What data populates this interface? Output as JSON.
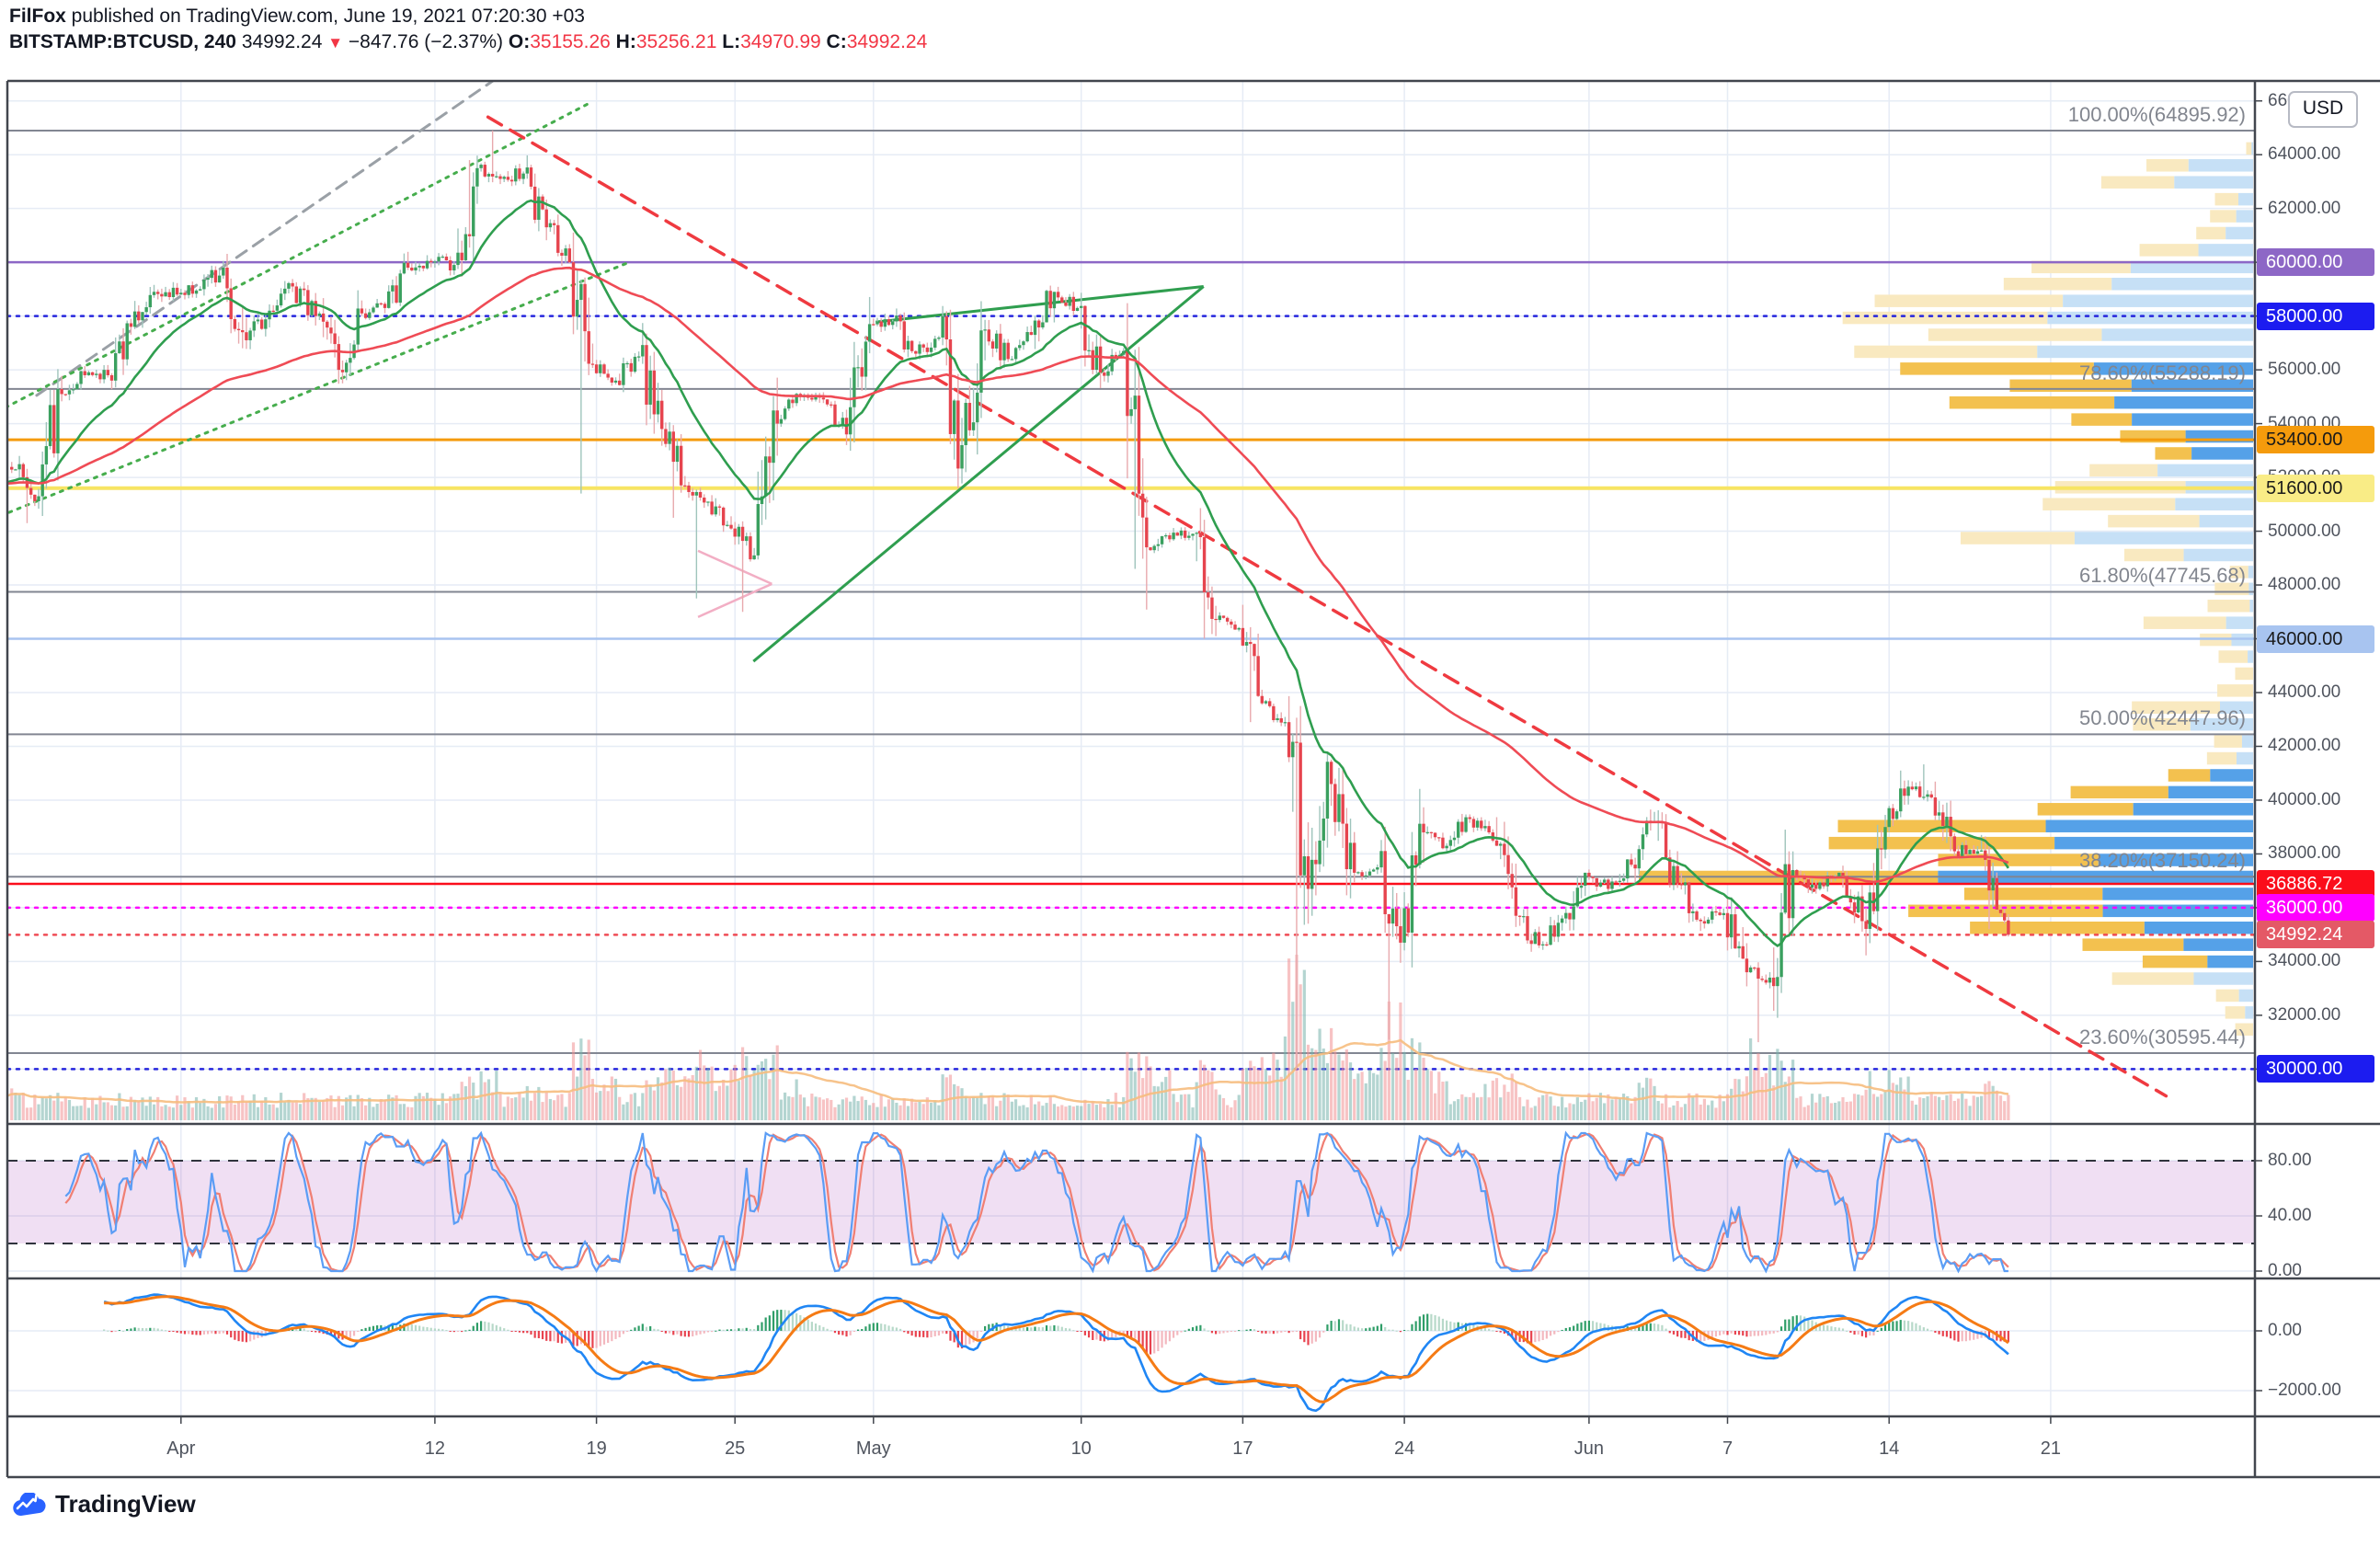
{
  "header": {
    "line1_bold": "FilFox",
    "line1_rest": " published on TradingView.com, June 19, 2021 07:20:30 +03",
    "symbol": "BITSTAMP:BTCUSD, 240",
    "last_price": "34992.24",
    "direction_icon": "▼",
    "change": "−847.76 (−2.37%)",
    "ohlc": [
      {
        "label": "O:",
        "value": "35155.26"
      },
      {
        "label": "H:",
        "value": "35256.21"
      },
      {
        "label": "L:",
        "value": "34970.99"
      },
      {
        "label": "C:",
        "value": "34992.24"
      }
    ]
  },
  "price_axis": {
    "currency": "USD",
    "tick_from": 66000,
    "tick_to": 30000,
    "tick_step": 2000
  },
  "indicator_axes": {
    "stoch_ticks": [
      {
        "label": "80.00",
        "value": 80
      },
      {
        "label": "40.00",
        "value": 40
      },
      {
        "label": "0.00",
        "value": 0
      }
    ],
    "macd_ticks": [
      {
        "label": "0.00",
        "value": 0
      },
      {
        "label": "−2000.00",
        "value": -2000
      }
    ]
  },
  "time_axis": {
    "ticks": [
      {
        "label": "Apr",
        "day": 8
      },
      {
        "label": "12",
        "day": 19
      },
      {
        "label": "19",
        "day": 26
      },
      {
        "label": "25",
        "day": 32
      },
      {
        "label": "May",
        "day": 38
      },
      {
        "label": "10",
        "day": 47
      },
      {
        "label": "17",
        "day": 54
      },
      {
        "label": "24",
        "day": 61
      },
      {
        "label": "Jun",
        "day": 69
      },
      {
        "label": "7",
        "day": 75
      },
      {
        "label": "14",
        "day": 82
      },
      {
        "label": "21",
        "day": 89
      }
    ]
  },
  "levels": [
    {
      "price": 60000,
      "label": "60000.00",
      "line_color": "#8d67c6",
      "style": "solid",
      "width": 2.5,
      "tag_bg": "#8d67c6",
      "tag_fg": "#ffffff"
    },
    {
      "price": 58000,
      "label": "58000.00",
      "line_color": "#2525dd",
      "style": "dotted",
      "width": 2.5,
      "tag_bg": "#1c1cf0",
      "tag_fg": "#ffffff"
    },
    {
      "price": 53400,
      "label": "53400.00",
      "line_color": "#f59b0c",
      "style": "solid",
      "width": 3,
      "tag_bg": "#f59b0c",
      "tag_fg": "#1a1a1a"
    },
    {
      "price": 51600,
      "label": "51600.00",
      "line_color": "#f7e463",
      "style": "solid",
      "width": 4,
      "tag_bg": "#f9ec86",
      "tag_fg": "#1a1a1a"
    },
    {
      "price": 46000,
      "label": "46000.00",
      "line_color": "#a8c4f0",
      "style": "solid",
      "width": 2.5,
      "tag_bg": "#a8c4f0",
      "tag_fg": "#1a1a1a"
    },
    {
      "price": 36886.72,
      "label": "36886.72",
      "line_color": "#fb0d1b",
      "style": "solid",
      "width": 2.5,
      "tag_bg": "#fb0d1b",
      "tag_fg": "#ffffff"
    },
    {
      "price": 36000,
      "label": "36000.00",
      "line_color": "#ff00ff",
      "style": "dotted",
      "width": 2.5,
      "tag_bg": "#ff00ff",
      "tag_fg": "#ffffff"
    },
    {
      "price": 34992.24,
      "label": "34992.24",
      "line_color": "#ef4b55",
      "style": "dotted",
      "width": 2.5,
      "tag_bg": "#e45966",
      "tag_fg": "#ffffff"
    },
    {
      "price": 30000,
      "label": "30000.00",
      "line_color": "#2525dd",
      "style": "dotted",
      "width": 2.5,
      "tag_bg": "#1c1cf0",
      "tag_fg": "#ffffff"
    }
  ],
  "fib_levels": [
    {
      "pct": "100.00%",
      "price": 64895.92,
      "label": "100.00%(64895.92)"
    },
    {
      "pct": "78.60%",
      "price": 55288.19,
      "label": "78.60%(55288.19)"
    },
    {
      "pct": "61.80%",
      "price": 47745.68,
      "label": "61.80%(47745.68)"
    },
    {
      "pct": "50.00%",
      "price": 42447.96,
      "label": "50.00%(42447.96)"
    },
    {
      "pct": "38.20%",
      "price": 37150.24,
      "label": "38.20%(37150.24)"
    },
    {
      "pct": "23.60%",
      "price": 30595.44,
      "label": "23.60%(30595.44)"
    }
  ],
  "fib_color": "#828692",
  "trendlines": [
    {
      "name": "gray-dashed-uptrend",
      "color": "#9aa0a6",
      "dash": "13 9",
      "width": 3,
      "points": [
        [
          1.75,
          55050
        ],
        [
          21.5,
          66740
        ]
      ]
    },
    {
      "name": "green-dotted-channel-upper",
      "color": "#46ad4d",
      "dash": "3 7",
      "width": 3,
      "points": [
        [
          0.4,
          54600
        ],
        [
          25.7,
          65920
        ]
      ]
    },
    {
      "name": "green-dotted-channel-lower",
      "color": "#46ad4d",
      "dash": "3 7",
      "width": 3,
      "points": [
        [
          0.55,
          50700
        ],
        [
          27.3,
          59960
        ]
      ]
    },
    {
      "name": "red-dashed-downtrend",
      "color": "#ef3a40",
      "dash": "17 11",
      "width": 3.5,
      "points": [
        [
          21.3,
          65400
        ],
        [
          94.0,
          29000
        ]
      ]
    },
    {
      "name": "green-triangle-lower",
      "color": "#2f9e4f",
      "dash": "",
      "width": 3,
      "points": [
        [
          32.8,
          45160
        ],
        [
          52.3,
          59100
        ]
      ]
    },
    {
      "name": "green-triangle-upper",
      "color": "#2f9e4f",
      "dash": "",
      "width": 3,
      "points": [
        [
          38.1,
          57780
        ],
        [
          52.3,
          59100
        ]
      ]
    },
    {
      "name": "pink-pennant-upper",
      "color": "#f2aec4",
      "dash": "",
      "width": 2.5,
      "points": [
        [
          30.4,
          49270
        ],
        [
          33.6,
          48040
        ]
      ]
    },
    {
      "name": "pink-pennant-lower",
      "color": "#f2aec4",
      "dash": "",
      "width": 2.5,
      "points": [
        [
          30.4,
          46810
        ],
        [
          33.6,
          48040
        ]
      ]
    }
  ],
  "chart_data": {
    "type": "candlestick",
    "symbol": "BITSTAMP:BTCUSD",
    "interval_minutes": 240,
    "start_day": "2021-03-24",
    "candles_per_day": 6,
    "start_price": 51800,
    "noise_base": 650,
    "daily_anchors": [
      [
        0,
        52300
      ],
      [
        1,
        51300,
        50300,
        null
      ],
      [
        2,
        55100
      ],
      [
        3,
        55800
      ],
      [
        4,
        55800
      ],
      [
        5,
        57600
      ],
      [
        6,
        58900
      ],
      [
        7,
        58800
      ],
      [
        8,
        59000
      ],
      [
        9,
        59800
      ],
      [
        10,
        57100
      ],
      [
        11,
        58200
      ],
      [
        12,
        59100
      ],
      [
        13,
        58000
      ],
      [
        14,
        56000
      ],
      [
        15,
        58100
      ],
      [
        16,
        58300
      ],
      [
        17,
        59800
      ],
      [
        18,
        60000
      ],
      [
        19,
        59900
      ],
      [
        20,
        63500,
        null,
        63800
      ],
      [
        21,
        63100,
        null,
        64895.92
      ],
      [
        22,
        63300
      ],
      [
        23,
        61300
      ],
      [
        24,
        60000
      ],
      [
        25,
        56200,
        51400,
        null
      ],
      [
        26,
        55600
      ],
      [
        27,
        56500
      ],
      [
        28,
        53800
      ],
      [
        29,
        51700,
        50500,
        null
      ],
      [
        30,
        51100,
        47500,
        null
      ],
      [
        31,
        50100
      ],
      [
        32,
        49100,
        47000,
        null
      ],
      [
        33,
        54000
      ],
      [
        34,
        55000
      ],
      [
        35,
        54900
      ],
      [
        36,
        53600
      ],
      [
        37,
        57700
      ],
      [
        38,
        57800
      ],
      [
        39,
        56600
      ],
      [
        40,
        57200
      ],
      [
        41,
        53200
      ],
      [
        42,
        57500
      ],
      [
        43,
        56400
      ],
      [
        44,
        57300
      ],
      [
        45,
        58900
      ],
      [
        46,
        58300
      ],
      [
        47,
        55900
      ],
      [
        48,
        56700
      ],
      [
        49,
        49400,
        48600,
        null
      ],
      [
        50,
        49700
      ],
      [
        51,
        49900
      ],
      [
        52,
        46700,
        46000,
        null
      ],
      [
        53,
        46400
      ],
      [
        54,
        43600,
        42900,
        null
      ],
      [
        55,
        42900
      ],
      [
        56,
        36700,
        30000,
        43500
      ],
      [
        57,
        40600
      ],
      [
        58,
        37300
      ],
      [
        59,
        37500
      ],
      [
        60,
        34700,
        31100,
        null
      ],
      [
        61,
        38800
      ],
      [
        62,
        38300
      ],
      [
        63,
        39300
      ],
      [
        64,
        38500
      ],
      [
        65,
        35700
      ],
      [
        66,
        34600
      ],
      [
        67,
        35600
      ],
      [
        68,
        37300
      ],
      [
        69,
        36700
      ],
      [
        70,
        37600
      ],
      [
        71,
        39200
      ],
      [
        72,
        36900
      ],
      [
        73,
        35500
      ],
      [
        74,
        35800
      ],
      [
        75,
        33600
      ],
      [
        76,
        33400,
        31000,
        null
      ],
      [
        77,
        37400
      ],
      [
        78,
        36700
      ],
      [
        79,
        37300
      ],
      [
        80,
        35500
      ],
      [
        81,
        39000
      ],
      [
        82,
        40500,
        null,
        41100
      ],
      [
        83,
        40100,
        null,
        41330
      ],
      [
        84,
        38100
      ],
      [
        85,
        38100
      ],
      [
        86,
        35800,
        35200,
        null
      ],
      [
        87,
        34992.24
      ]
    ],
    "style": {
      "up_color": "#3aa05f",
      "down_color": "#e6444e",
      "up_wick": "#9fc4bc",
      "down_wick": "#e8a9ad"
    },
    "volume_day_factor_default": 0.1,
    "volume_day_factors": {
      "0": 0.12,
      "20": 0.16,
      "21": 0.18,
      "23": 0.14,
      "25": 0.3,
      "26": 0.18,
      "28": 0.16,
      "29": 0.22,
      "30": 0.26,
      "31": 0.2,
      "32": 0.28,
      "33": 0.3,
      "34": 0.16,
      "41": 0.18,
      "49": 0.3,
      "50": 0.2,
      "52": 0.22,
      "54": 0.28,
      "55": 0.34,
      "56": 0.6,
      "57": 0.4,
      "58": 0.26,
      "59": 0.2,
      "60": 0.44,
      "61": 0.3,
      "62": 0.2,
      "64": 0.16,
      "65": 0.18,
      "71": 0.16,
      "75": 0.2,
      "76": 0.3,
      "77": 0.26,
      "81": 0.18,
      "82": 0.2,
      "86": 0.16,
      "87": 0.14
    },
    "indicators": {
      "ema_fast": {
        "length": 24,
        "color": "#2f9e4f"
      },
      "ema_slow": {
        "length": 96,
        "color": "#ef4b55"
      },
      "stoch_rsi": {
        "rsi_length": 14,
        "stoch_length": 14,
        "k": 3,
        "d": 3,
        "k_color": "#5b9df5",
        "d_color": "#f07f73",
        "band": [
          20,
          80
        ],
        "band_color": "rgba(156,39,176,0.15)",
        "dashed_color": "#30343d"
      },
      "macd": {
        "fast": 12,
        "slow": 26,
        "signal": 9,
        "macd_color": "#2086f4",
        "signal_color": "#f57b15",
        "hist_colors": [
          "#2f9e68",
          "#b7d9c9",
          "#f3b8bf",
          "#e8434f"
        ]
      },
      "volume": {
        "up_color": "rgba(119,178,172,0.55)",
        "down_color": "rgba(240,146,148,0.55)",
        "ma_color": "#f6bd7e"
      }
    },
    "volume_profile": {
      "bin_size": 630,
      "range": [
        29900,
        65530
      ],
      "value_areas": [
        [
          33400,
          41000
        ],
        [
          52700,
          56200
        ]
      ],
      "bright_down": "#f3c14f",
      "bright_up": "#55a1e8",
      "pale_down": "#f9e9c0",
      "pale_up": "#c6e0f6"
    }
  },
  "grid_color": "#e6ecf5",
  "frame_color": "#42464e",
  "branding": {
    "logo_text": "TradingView",
    "logo_color": "#2962ff"
  }
}
